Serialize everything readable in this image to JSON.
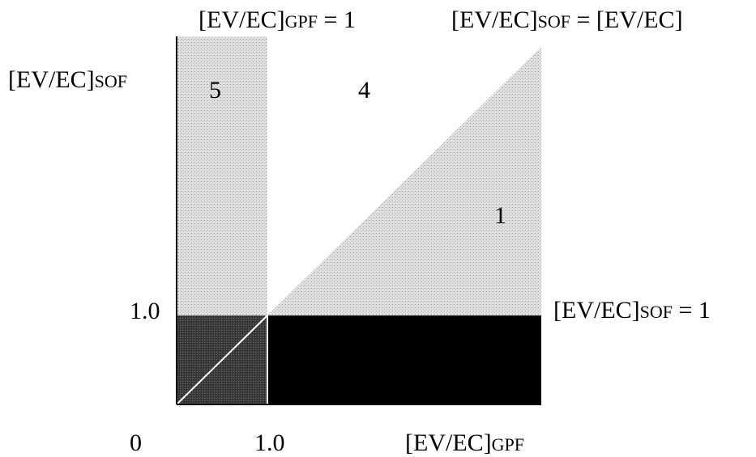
{
  "diagram": {
    "labels": {
      "top_gpf_prefix": "[EV/EC]",
      "top_gpf_sub": "GPF",
      "top_gpf_suffix": " = 1",
      "top_sof_prefix": "[EV/EC]",
      "top_sof_sub": "SOF",
      "top_sof_suffix": " = [EV/EC]",
      "y_axis_prefix": "[EV/EC]",
      "y_axis_sub": "SOF",
      "right_sof_prefix": "[EV/EC]",
      "right_sof_sub": "SOF",
      "right_sof_suffix": " = 1",
      "x_axis_prefix": "[EV/EC]",
      "x_axis_sub": "GPF",
      "y_tick_one": "1.0",
      "x_tick_zero": "0",
      "x_tick_one": "1.0"
    },
    "regions": {
      "region_5": "5",
      "region_4": "4",
      "region_1": "1"
    },
    "colors": {
      "light_stipple": "#c9c9c9",
      "dark_corner": "#3a3a3a",
      "black_band": "#000000",
      "axis": "#000000",
      "diagonal_line": "#ffffff"
    }
  }
}
